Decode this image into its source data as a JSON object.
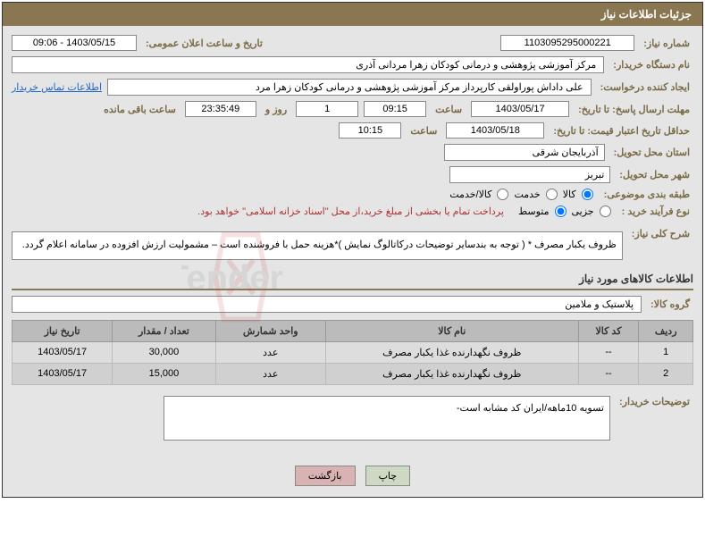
{
  "header": {
    "title": "جزئیات اطلاعات نیاز"
  },
  "fields": {
    "need_number": {
      "label": "شماره نیاز:",
      "value": "1103095295000221"
    },
    "announce_date": {
      "label": "تاریخ و ساعت اعلان عمومی:",
      "value": "1403/05/15 - 09:06"
    },
    "buyer_org": {
      "label": "نام دستگاه خریدار:",
      "value": "مرکز آموزشی پژوهشی و درمانی کودکان زهرا مردانی آذری"
    },
    "requester": {
      "label": "ایجاد کننده درخواست:",
      "value": "علی داداش پوراولقی کارپرداز مرکز آموزشی پژوهشی و درمانی کودکان زهرا مرد",
      "link": "اطلاعات تماس خریدار"
    },
    "response_deadline": {
      "label": "مهلت ارسال پاسخ: تا تاریخ:",
      "date": "1403/05/17",
      "time_label": "ساعت",
      "time": "09:15",
      "days_label": "روز و",
      "days": "1",
      "countdown": "23:35:49",
      "remaining": "ساعت باقی مانده"
    },
    "validity": {
      "label": "حداقل تاریخ اعتبار قیمت: تا تاریخ:",
      "date": "1403/05/18",
      "time_label": "ساعت",
      "time": "10:15"
    },
    "province": {
      "label": "استان محل تحویل:",
      "value": "آذربایجان شرقی"
    },
    "city": {
      "label": "شهر محل تحویل:",
      "value": "تبریز"
    },
    "category": {
      "label": "طبقه بندی موضوعی:",
      "opts": [
        "کالا",
        "خدمت",
        "کالا/خدمت"
      ]
    },
    "purchase_type": {
      "label": "نوع فرآیند خرید :",
      "opts": [
        "جزیی",
        "متوسط"
      ],
      "note": "پرداخت تمام یا بخشی از مبلغ خرید،از محل \"اسناد خزانه اسلامی\" خواهد بود."
    },
    "general_desc": {
      "label": "شرح کلی نیاز:",
      "value": "ظروف یکبار مصرف * ( توجه به بندسایر توضیحات درکاتالوگ نمایش )*هزینه حمل با فروشنده است – مشمولیت ارزش افزوده در سامانه اعلام  گردد."
    },
    "items_title": "اطلاعات کالاهای مورد نیاز",
    "group": {
      "label": "گروه کالا:",
      "value": "پلاستیک و ملامین"
    },
    "buyer_notes": {
      "label": "توضیحات خریدار:",
      "value": "تسویه 10ماهه/ایران کد مشابه است-"
    }
  },
  "table": {
    "headers": [
      "ردیف",
      "کد کالا",
      "نام کالا",
      "واحد شمارش",
      "تعداد / مقدار",
      "تاریخ نیاز"
    ],
    "rows": [
      [
        "1",
        "--",
        "ظروف نگهدارنده غذا یکبار مصرف",
        "عدد",
        "30,000",
        "1403/05/17"
      ],
      [
        "2",
        "--",
        "ظروف نگهدارنده غذا یکبار مصرف",
        "عدد",
        "15,000",
        "1403/05/17"
      ]
    ]
  },
  "buttons": {
    "print": "چاپ",
    "back": "بازگشت"
  }
}
